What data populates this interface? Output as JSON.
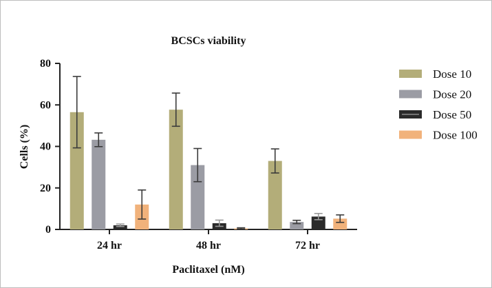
{
  "chart_data": {
    "type": "bar",
    "title": "BCSCs viability",
    "xlabel": "Paclitaxel (nM)",
    "ylabel": "Cells (%)",
    "ylim": [
      0,
      80
    ],
    "yticks": [
      "0",
      "20",
      "40",
      "60",
      "80"
    ],
    "categories": [
      "24 hr",
      "48 hr",
      "72 hr"
    ],
    "legend_position": "right",
    "grid": false,
    "series": [
      {
        "name": "Dose 10",
        "color": "#b3ad79",
        "values": [
          56.5,
          57.7,
          33.0
        ],
        "errors": [
          17.2,
          8.0,
          5.8
        ]
      },
      {
        "name": "Dose 20",
        "color": "#9b9ca4",
        "values": [
          43.2,
          31.0,
          3.6
        ],
        "errors": [
          3.3,
          8.0,
          0.8
        ]
      },
      {
        "name": "Dose 50",
        "color": "#2a2a2a",
        "values": [
          2.0,
          3.0,
          6.2
        ],
        "errors": [
          0.6,
          1.5,
          1.5
        ]
      },
      {
        "name": "Dose 100",
        "color": "#f1b27b",
        "values": [
          12.0,
          0.5,
          5.2
        ],
        "errors": [
          7.0,
          0.3,
          1.8
        ]
      }
    ]
  }
}
